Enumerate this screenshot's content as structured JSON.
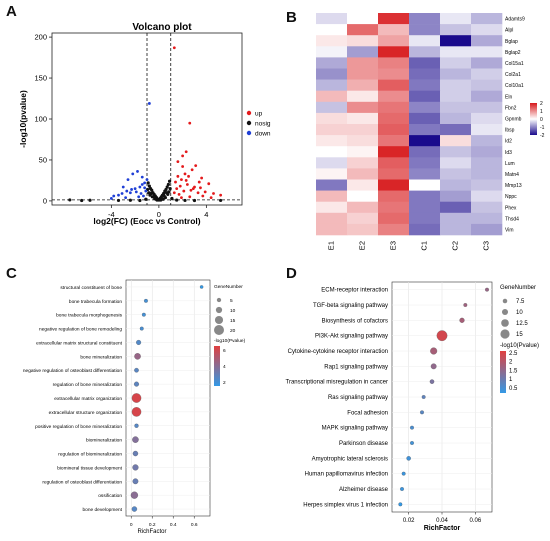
{
  "panels": {
    "A": "A",
    "B": "B",
    "C": "C",
    "D": "D"
  },
  "chart_data": [
    {
      "panel": "A",
      "type": "scatter",
      "title": "Volcano plot",
      "xlabel": "log2(FC) (Eocc vs Control)",
      "ylabel": "-log10(pvalue)",
      "xlim": [
        -9,
        7
      ],
      "ylim": [
        -5,
        205
      ],
      "xticks": [
        -4,
        0,
        4
      ],
      "yticks": [
        0,
        50,
        100,
        150,
        200
      ],
      "xtick_labels": [
        "-4",
        "0",
        "4"
      ],
      "ytick_labels": [
        "0",
        "50",
        "100",
        "150",
        "200"
      ],
      "thresholds": {
        "x": [
          -1,
          1
        ],
        "y": 1.3
      },
      "colors": {
        "up": "#e41a1c",
        "nosig": "#111111",
        "down": "#1f3fd6"
      },
      "legend": {
        "position": "right",
        "entries": [
          "up",
          "nosig",
          "down"
        ]
      },
      "series": [
        {
          "name": "up",
          "points": [
            [
              2.6,
              95
            ],
            [
              2.3,
              60
            ],
            [
              1.3,
              187
            ],
            [
              3.1,
              43
            ],
            [
              2.8,
              38
            ],
            [
              3.6,
              28
            ],
            [
              4.2,
              21
            ],
            [
              3.4,
              23
            ],
            [
              1.6,
              48
            ],
            [
              2.0,
              42
            ],
            [
              2.2,
              33
            ],
            [
              2.5,
              30
            ],
            [
              1.9,
              26
            ],
            [
              3.0,
              17
            ],
            [
              1.4,
              23
            ],
            [
              2.7,
              13
            ],
            [
              3.9,
              11
            ],
            [
              4.6,
              9
            ],
            [
              5.2,
              7
            ],
            [
              2.4,
              20
            ],
            [
              1.8,
              18
            ],
            [
              1.5,
              15
            ],
            [
              2.9,
              15
            ],
            [
              3.3,
              10
            ],
            [
              2.1,
              12
            ],
            [
              1.7,
              8
            ],
            [
              3.7,
              6
            ],
            [
              4.4,
              4
            ],
            [
              2.6,
              5
            ],
            [
              1.9,
              4
            ],
            [
              1.3,
              10
            ],
            [
              2.3,
              25
            ],
            [
              3.5,
              16
            ],
            [
              1.6,
              30
            ],
            [
              2.0,
              55
            ]
          ]
        },
        {
          "name": "down",
          "points": [
            [
              -0.8,
              119
            ],
            [
              -2.2,
              33
            ],
            [
              -1.8,
              36
            ],
            [
              -1.4,
              29
            ],
            [
              -2.6,
              26
            ],
            [
              -1.2,
              22
            ],
            [
              -3.0,
              17
            ],
            [
              -1.6,
              17
            ],
            [
              -2.0,
              15
            ],
            [
              -1.1,
              12
            ],
            [
              -2.4,
              10
            ],
            [
              -3.4,
              7
            ],
            [
              -1.7,
              5
            ],
            [
              -1.3,
              6
            ],
            [
              -2.8,
              4
            ],
            [
              -4.0,
              3
            ],
            [
              -1.9,
              11
            ],
            [
              -2.3,
              14
            ],
            [
              -1.5,
              9
            ],
            [
              -3.1,
              9
            ],
            [
              -1.2,
              16
            ],
            [
              -2.7,
              12
            ],
            [
              -1.0,
              26
            ],
            [
              -3.8,
              6
            ],
            [
              -1.4,
              20
            ]
          ]
        },
        {
          "name": "nosig",
          "points": [
            [
              0,
              1
            ],
            [
              0.1,
              3
            ],
            [
              -0.1,
              2
            ],
            [
              0.2,
              5
            ],
            [
              -0.2,
              4
            ],
            [
              0.3,
              7
            ],
            [
              -0.3,
              6
            ],
            [
              0.4,
              9
            ],
            [
              -0.4,
              8
            ],
            [
              0.5,
              12
            ],
            [
              -0.5,
              10
            ],
            [
              0.6,
              14
            ],
            [
              -0.6,
              13
            ],
            [
              0.7,
              17
            ],
            [
              -0.7,
              15
            ],
            [
              0.8,
              20
            ],
            [
              -0.8,
              18
            ],
            [
              0.9,
              24
            ],
            [
              -0.9,
              22
            ],
            [
              0.35,
              2
            ],
            [
              -0.35,
              3
            ],
            [
              0.55,
              4
            ],
            [
              -0.55,
              5
            ],
            [
              0.75,
              8
            ],
            [
              -0.75,
              7
            ],
            [
              0.85,
              11
            ],
            [
              -0.85,
              10
            ],
            [
              0.95,
              15
            ],
            [
              -0.95,
              14
            ],
            [
              0.15,
              1
            ],
            [
              -0.15,
              1
            ],
            [
              0.45,
              6
            ],
            [
              -0.45,
              5
            ],
            [
              0.65,
              10
            ],
            [
              -0.65,
              9
            ],
            [
              0.25,
              3
            ],
            [
              -0.25,
              2
            ],
            [
              1.1,
              3
            ],
            [
              -1.1,
              2
            ],
            [
              1.5,
              1
            ],
            [
              -1.6,
              0.5
            ],
            [
              2.2,
              0.6
            ],
            [
              -2.4,
              0.8
            ],
            [
              3.0,
              0.5
            ],
            [
              -3.4,
              0.6
            ],
            [
              -6.5,
              0.5
            ],
            [
              -7.5,
              1.2
            ],
            [
              -5.8,
              0.8
            ],
            [
              5.2,
              0.6
            ]
          ]
        }
      ]
    },
    {
      "panel": "B",
      "type": "heatmap",
      "columns": [
        "E1",
        "E2",
        "E3",
        "C1",
        "C2",
        "C3"
      ],
      "rows": [
        "Adamts9",
        "Alpl",
        "Bglap",
        "Bglap2",
        "Col15a1",
        "Col2a1",
        "Col10a1",
        "Eln",
        "Fbn2",
        "Gpnmb",
        "Ibsp",
        "Id2",
        "Id3",
        "Lum",
        "Matn4",
        "Mmp13",
        "Nppc",
        "Phex",
        "Thsd4",
        "Vim"
      ],
      "values": [
        [
          -0.3,
          0.0,
          1.8,
          -1.0,
          -0.2,
          -0.6
        ],
        [
          0.0,
          1.3,
          0.6,
          -1.0,
          -0.5,
          -0.3
        ],
        [
          0.2,
          0.3,
          0.8,
          -0.2,
          -2.0,
          -0.7
        ],
        [
          -0.1,
          -0.8,
          1.9,
          -0.6,
          -0.2,
          -0.2
        ],
        [
          -0.7,
          0.9,
          1.1,
          -1.3,
          -0.4,
          -0.7
        ],
        [
          -0.9,
          0.9,
          1.0,
          -1.2,
          -0.6,
          -0.4
        ],
        [
          -0.6,
          0.7,
          1.4,
          -1.1,
          -0.4,
          -0.5
        ],
        [
          0.6,
          0.2,
          1.0,
          -1.3,
          -0.4,
          -0.7
        ],
        [
          -0.5,
          1.0,
          1.2,
          -1.0,
          -0.5,
          -0.5
        ],
        [
          0.3,
          0.2,
          1.3,
          -1.3,
          -0.6,
          -0.3
        ],
        [
          0.4,
          0.4,
          1.4,
          -1.1,
          -1.2,
          -0.2
        ],
        [
          0.2,
          0.3,
          1.2,
          -2.0,
          0.3,
          -0.6
        ],
        [
          0.0,
          0.1,
          1.9,
          -1.2,
          -0.5,
          -0.7
        ],
        [
          -0.3,
          0.4,
          1.4,
          -1.1,
          -0.3,
          -0.6
        ],
        [
          0.1,
          0.6,
          1.3,
          -1.0,
          -0.5,
          -0.6
        ],
        [
          -1.1,
          0.2,
          1.9,
          0.0,
          -0.6,
          -0.5
        ],
        [
          0.6,
          0.0,
          1.3,
          -1.1,
          -0.8,
          -0.3
        ],
        [
          0.2,
          0.6,
          1.2,
          -1.1,
          -1.3,
          -0.5
        ],
        [
          0.6,
          0.4,
          1.3,
          -1.1,
          -0.6,
          -0.6
        ],
        [
          0.6,
          0.5,
          1.1,
          -1.2,
          -0.6,
          -0.8
        ]
      ],
      "color_range": [
        -2,
        2
      ],
      "colorbar_ticks": [
        2,
        1,
        0,
        -1,
        -2
      ],
      "colorbar_tick_labels": [
        "2",
        "1",
        "0",
        "-1",
        "-2"
      ],
      "colors": {
        "high": "#d7191c",
        "mid": "#ffffff",
        "low": "#1a0a8c"
      }
    },
    {
      "panel": "C",
      "type": "scatter",
      "subtype": "dot-enrichment",
      "xlabel": "RichFactor",
      "xlim": [
        -0.05,
        0.75
      ],
      "xticks": [
        0,
        0.2,
        0.4,
        0.6
      ],
      "xtick_labels": [
        "0",
        "0.2",
        "0.4",
        "0.6"
      ],
      "terms": [
        {
          "term": "structural constituent of bone",
          "x": 0.67,
          "count": 2,
          "p": 1.5
        },
        {
          "term": "bone trabecula formation",
          "x": 0.14,
          "count": 3,
          "p": 2.0
        },
        {
          "term": "bone trabecula morphogenesis",
          "x": 0.12,
          "count": 3,
          "p": 2.0
        },
        {
          "term": "negative regulation of bone remodeling",
          "x": 0.1,
          "count": 3,
          "p": 2.1
        },
        {
          "term": "extracellular matrix structural constituent",
          "x": 0.07,
          "count": 6,
          "p": 2.4
        },
        {
          "term": "bone mineralization",
          "x": 0.06,
          "count": 10,
          "p": 4.4
        },
        {
          "term": "negative regulation of osteoblast differentiation",
          "x": 0.05,
          "count": 5,
          "p": 2.6
        },
        {
          "term": "regulation of bone mineralization",
          "x": 0.05,
          "count": 6,
          "p": 2.7
        },
        {
          "term": "extracellular matrix organization",
          "x": 0.05,
          "count": 18,
          "p": 6.2
        },
        {
          "term": "extracellular structure organization",
          "x": 0.05,
          "count": 18,
          "p": 6.2
        },
        {
          "term": "positive regulation of bone mineralization",
          "x": 0.05,
          "count": 4,
          "p": 2.5
        },
        {
          "term": "biomineralization",
          "x": 0.04,
          "count": 10,
          "p": 3.8
        },
        {
          "term": "regulation of biomineralization",
          "x": 0.04,
          "count": 7,
          "p": 3.0
        },
        {
          "term": "biomineral tissue development",
          "x": 0.04,
          "count": 9,
          "p": 3.3
        },
        {
          "term": "regulation of osteoblast differentiation",
          "x": 0.04,
          "count": 8,
          "p": 3.0
        },
        {
          "term": "ossification",
          "x": 0.03,
          "count": 12,
          "p": 4.0
        },
        {
          "term": "bone development",
          "x": 0.03,
          "count": 7,
          "p": 2.5
        }
      ],
      "size_legend": {
        "title": "GeneNumber",
        "entries": [
          "5",
          "10",
          "15",
          "20"
        ],
        "values": [
          5,
          10,
          15,
          20
        ]
      },
      "color_legend": {
        "title": "-log10(Pvalue)",
        "ticks": [
          "6",
          "4",
          "2"
        ],
        "tick_values": [
          6,
          4,
          2
        ],
        "range": [
          1.5,
          6.5
        ]
      },
      "colors": {
        "high": "#e04040",
        "low": "#3399e6"
      }
    },
    {
      "panel": "D",
      "type": "scatter",
      "subtype": "dot-enrichment",
      "xlabel": "RichFactor",
      "xlim": [
        0.01,
        0.07
      ],
      "xticks": [
        0.02,
        0.04,
        0.06
      ],
      "xtick_labels": [
        "0.02",
        "0.04",
        "0.06"
      ],
      "terms": [
        {
          "term": "ECM-receptor interaction",
          "x": 0.067,
          "count": 6,
          "p": 1.6
        },
        {
          "term": "TGF-beta signaling pathway",
          "x": 0.054,
          "count": 6,
          "p": 1.7
        },
        {
          "term": "Biosynthesis of cofactors",
          "x": 0.052,
          "count": 8,
          "p": 1.8
        },
        {
          "term": "PI3K-Akt signaling pathway",
          "x": 0.04,
          "count": 17,
          "p": 2.4
        },
        {
          "term": "Cytokine-cytokine receptor interaction",
          "x": 0.035,
          "count": 11,
          "p": 1.8
        },
        {
          "term": "Rap1 signaling pathway",
          "x": 0.035,
          "count": 9,
          "p": 1.5
        },
        {
          "term": "Transcriptional misregulation in cancer",
          "x": 0.034,
          "count": 7,
          "p": 1.2
        },
        {
          "term": "Ras signaling pathway",
          "x": 0.029,
          "count": 6,
          "p": 0.8
        },
        {
          "term": "Focal adhesion",
          "x": 0.028,
          "count": 6,
          "p": 0.7
        },
        {
          "term": "MAPK signaling pathway",
          "x": 0.022,
          "count": 6,
          "p": 0.5
        },
        {
          "term": "Parkinson disease",
          "x": 0.022,
          "count": 6,
          "p": 0.4
        },
        {
          "term": "Amyotrophic lateral sclerosis",
          "x": 0.02,
          "count": 7,
          "p": 0.4
        },
        {
          "term": "Human papillomavirus infection",
          "x": 0.017,
          "count": 6,
          "p": 0.3
        },
        {
          "term": "Alzheimer disease",
          "x": 0.016,
          "count": 6,
          "p": 0.3
        },
        {
          "term": "Herpes simplex virus 1 infection",
          "x": 0.015,
          "count": 6,
          "p": 0.2
        }
      ],
      "size_legend": {
        "title": "GeneNumber",
        "entries": [
          "7.5",
          "10",
          "12.5",
          "15"
        ],
        "values": [
          7.5,
          10,
          12.5,
          15
        ]
      },
      "color_legend": {
        "title": "-log10(Pvalue)",
        "ticks": [
          "2.5",
          "2",
          "1.5",
          "1",
          "0.5"
        ],
        "tick_values": [
          2.5,
          2,
          1.5,
          1,
          0.5
        ],
        "range": [
          0.2,
          2.6
        ]
      },
      "colors": {
        "high": "#e04040",
        "low": "#3399e6"
      }
    }
  ]
}
